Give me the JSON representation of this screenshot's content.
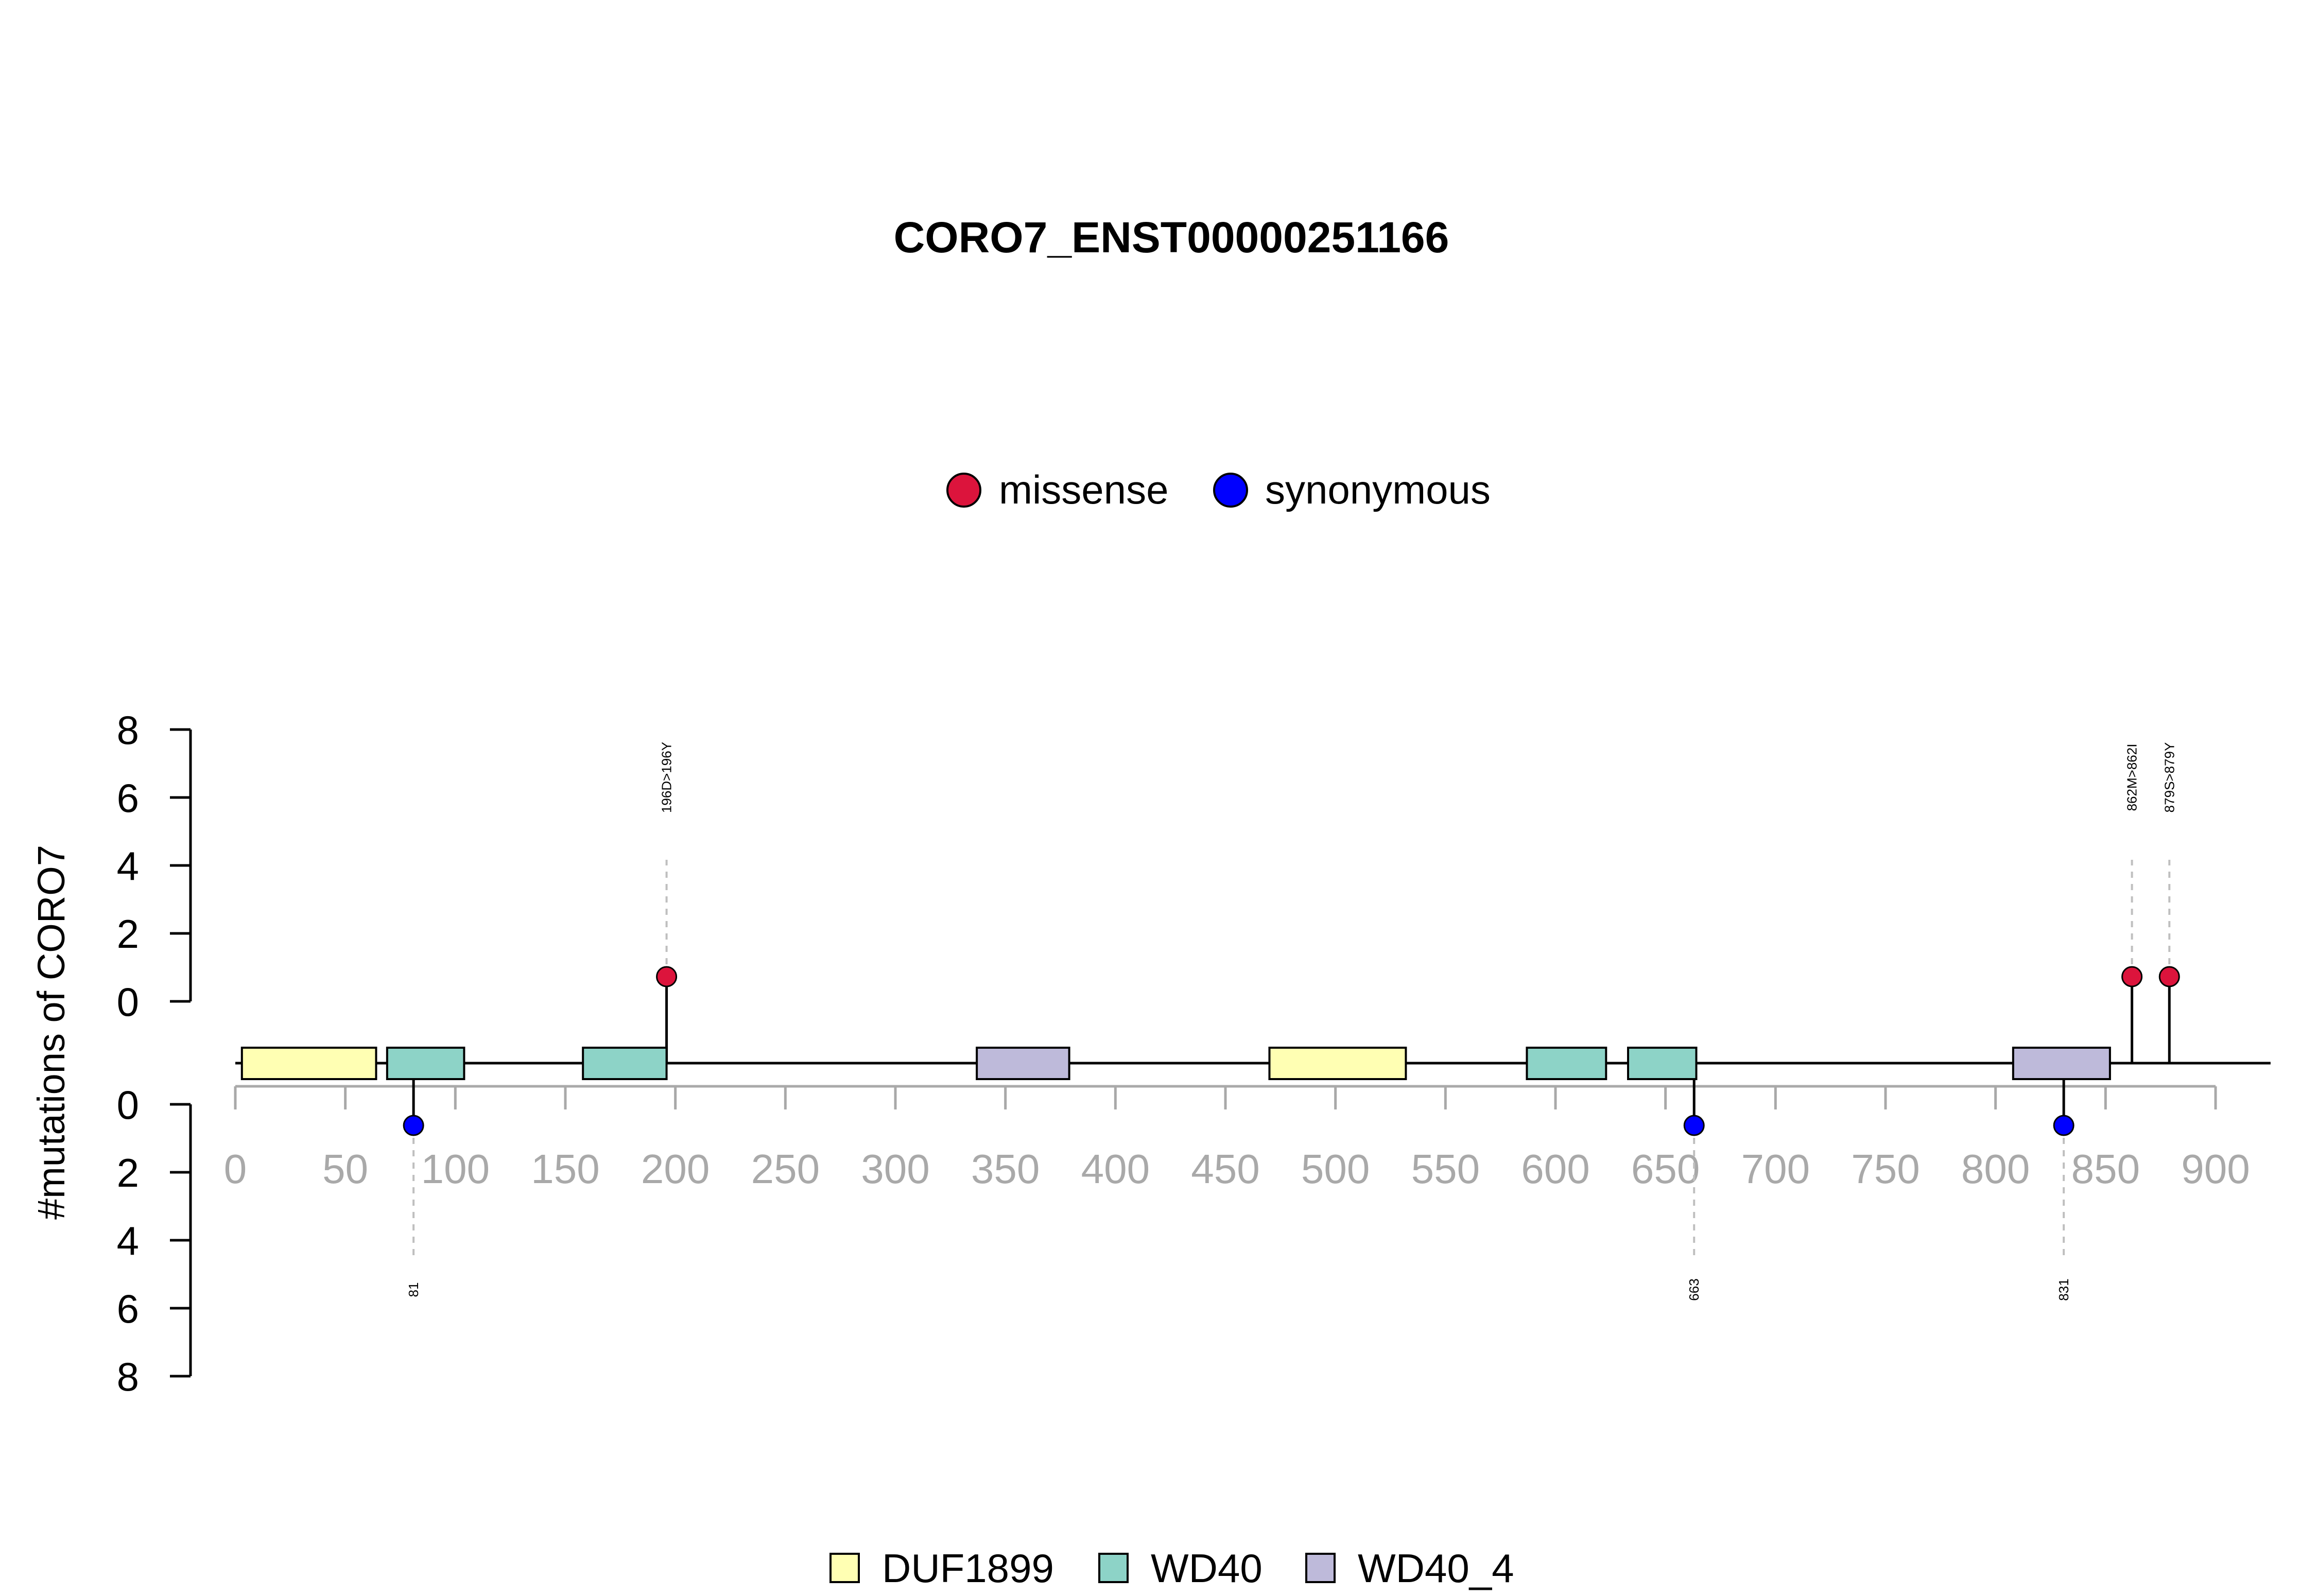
{
  "chart_data": {
    "type": "lollipop",
    "title": "CORO7_ENST00000251166",
    "ylabel": "#mutations of CORO7",
    "xlim": [
      0,
      900
    ],
    "x_ticks": [
      0,
      50,
      100,
      150,
      200,
      250,
      300,
      350,
      400,
      450,
      500,
      550,
      600,
      650,
      700,
      750,
      800,
      850,
      900
    ],
    "protein_length": 925,
    "y_ticks_upper": [
      0,
      2,
      4,
      6,
      8
    ],
    "y_ticks_lower": [
      0,
      2,
      4,
      6,
      8
    ],
    "mutation_legend": [
      {
        "label": "missense",
        "color": "#dc143c"
      },
      {
        "label": "synonymous",
        "color": "#0000ff"
      }
    ],
    "domain_legend": [
      {
        "label": "DUF1899",
        "color": "#ffffb3"
      },
      {
        "label": "WD40",
        "color": "#8dd3c7"
      },
      {
        "label": "WD40_4",
        "color": "#bebada"
      }
    ],
    "domains": [
      {
        "name": "DUF1899",
        "start": 3,
        "end": 64
      },
      {
        "name": "WD40",
        "start": 69,
        "end": 104
      },
      {
        "name": "WD40",
        "start": 158,
        "end": 196
      },
      {
        "name": "WD40_4",
        "start": 337,
        "end": 379
      },
      {
        "name": "DUF1899",
        "start": 470,
        "end": 532
      },
      {
        "name": "WD40",
        "start": 587,
        "end": 623
      },
      {
        "name": "WD40",
        "start": 633,
        "end": 664
      },
      {
        "name": "WD40_4",
        "start": 808,
        "end": 852
      }
    ],
    "mutations": [
      {
        "position": 196,
        "count": 1,
        "type": "missense",
        "label": "196D>196Y"
      },
      {
        "position": 862,
        "count": 1,
        "type": "missense",
        "label": "862M>862I"
      },
      {
        "position": 879,
        "count": 1,
        "type": "missense",
        "label": "879S>879Y"
      },
      {
        "position": 81,
        "count": 1,
        "type": "synonymous",
        "label": "81"
      },
      {
        "position": 663,
        "count": 1,
        "type": "synonymous",
        "label": "663"
      },
      {
        "position": 831,
        "count": 1,
        "type": "synonymous",
        "label": "831"
      }
    ]
  }
}
